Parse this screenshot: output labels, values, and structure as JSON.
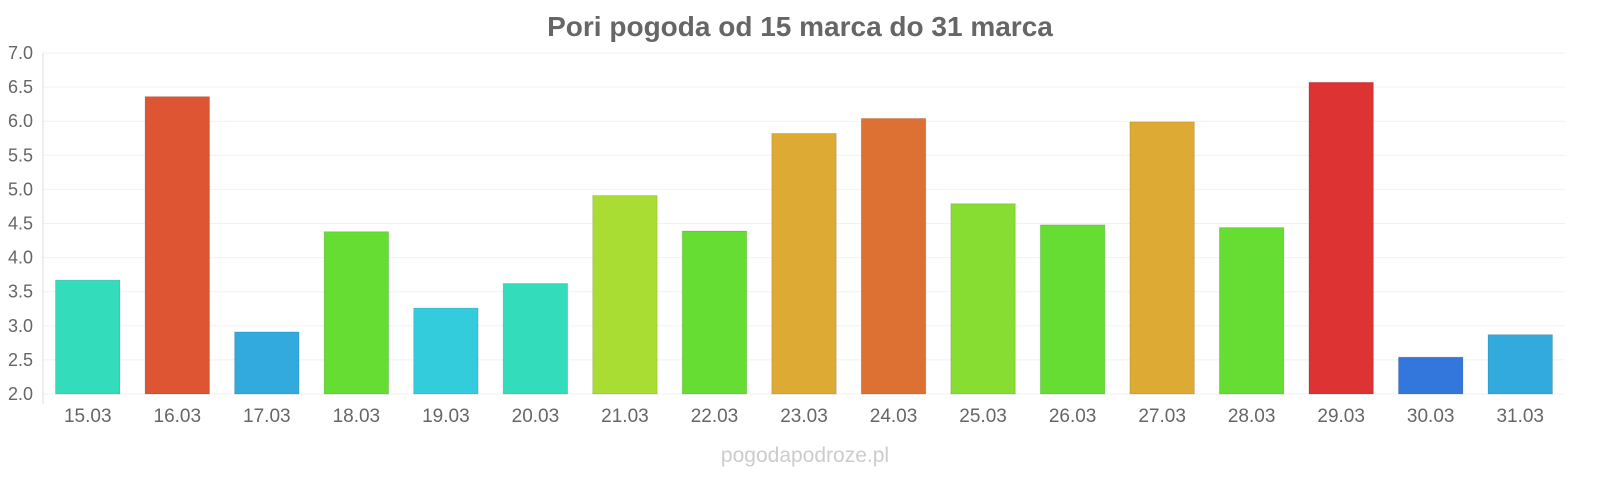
{
  "chart_data": {
    "type": "bar",
    "title": "Pori pogoda od 15 marca do 31 marca",
    "xlabel": "",
    "ylabel": "",
    "ylim": [
      2.0,
      7.0
    ],
    "yticks": [
      "2.0",
      "2.5",
      "3.0",
      "3.5",
      "4.0",
      "4.5",
      "5.0",
      "5.5",
      "6.0",
      "6.5",
      "7.0"
    ],
    "grid": true,
    "categories": [
      "15.03",
      "16.03",
      "17.03",
      "18.03",
      "19.03",
      "20.03",
      "21.03",
      "22.03",
      "23.03",
      "24.03",
      "25.03",
      "26.03",
      "27.03",
      "28.03",
      "29.03",
      "30.03",
      "31.03"
    ],
    "values": [
      3.67,
      6.36,
      2.91,
      4.38,
      3.26,
      3.62,
      4.91,
      4.39,
      5.82,
      6.04,
      4.79,
      4.48,
      5.99,
      4.44,
      6.57,
      2.54,
      2.87
    ],
    "colors": [
      "#33ddbb",
      "#dd5533",
      "#33aadd",
      "#66dd33",
      "#33ccdd",
      "#33ddbb",
      "#aadd33",
      "#66dd33",
      "#ddaa33",
      "#dd7033",
      "#88dd33",
      "#66dd33",
      "#ddaa33",
      "#66dd33",
      "#dd3333",
      "#3377dd",
      "#33aadd"
    ]
  },
  "watermark": "pogodapodroze.pl"
}
